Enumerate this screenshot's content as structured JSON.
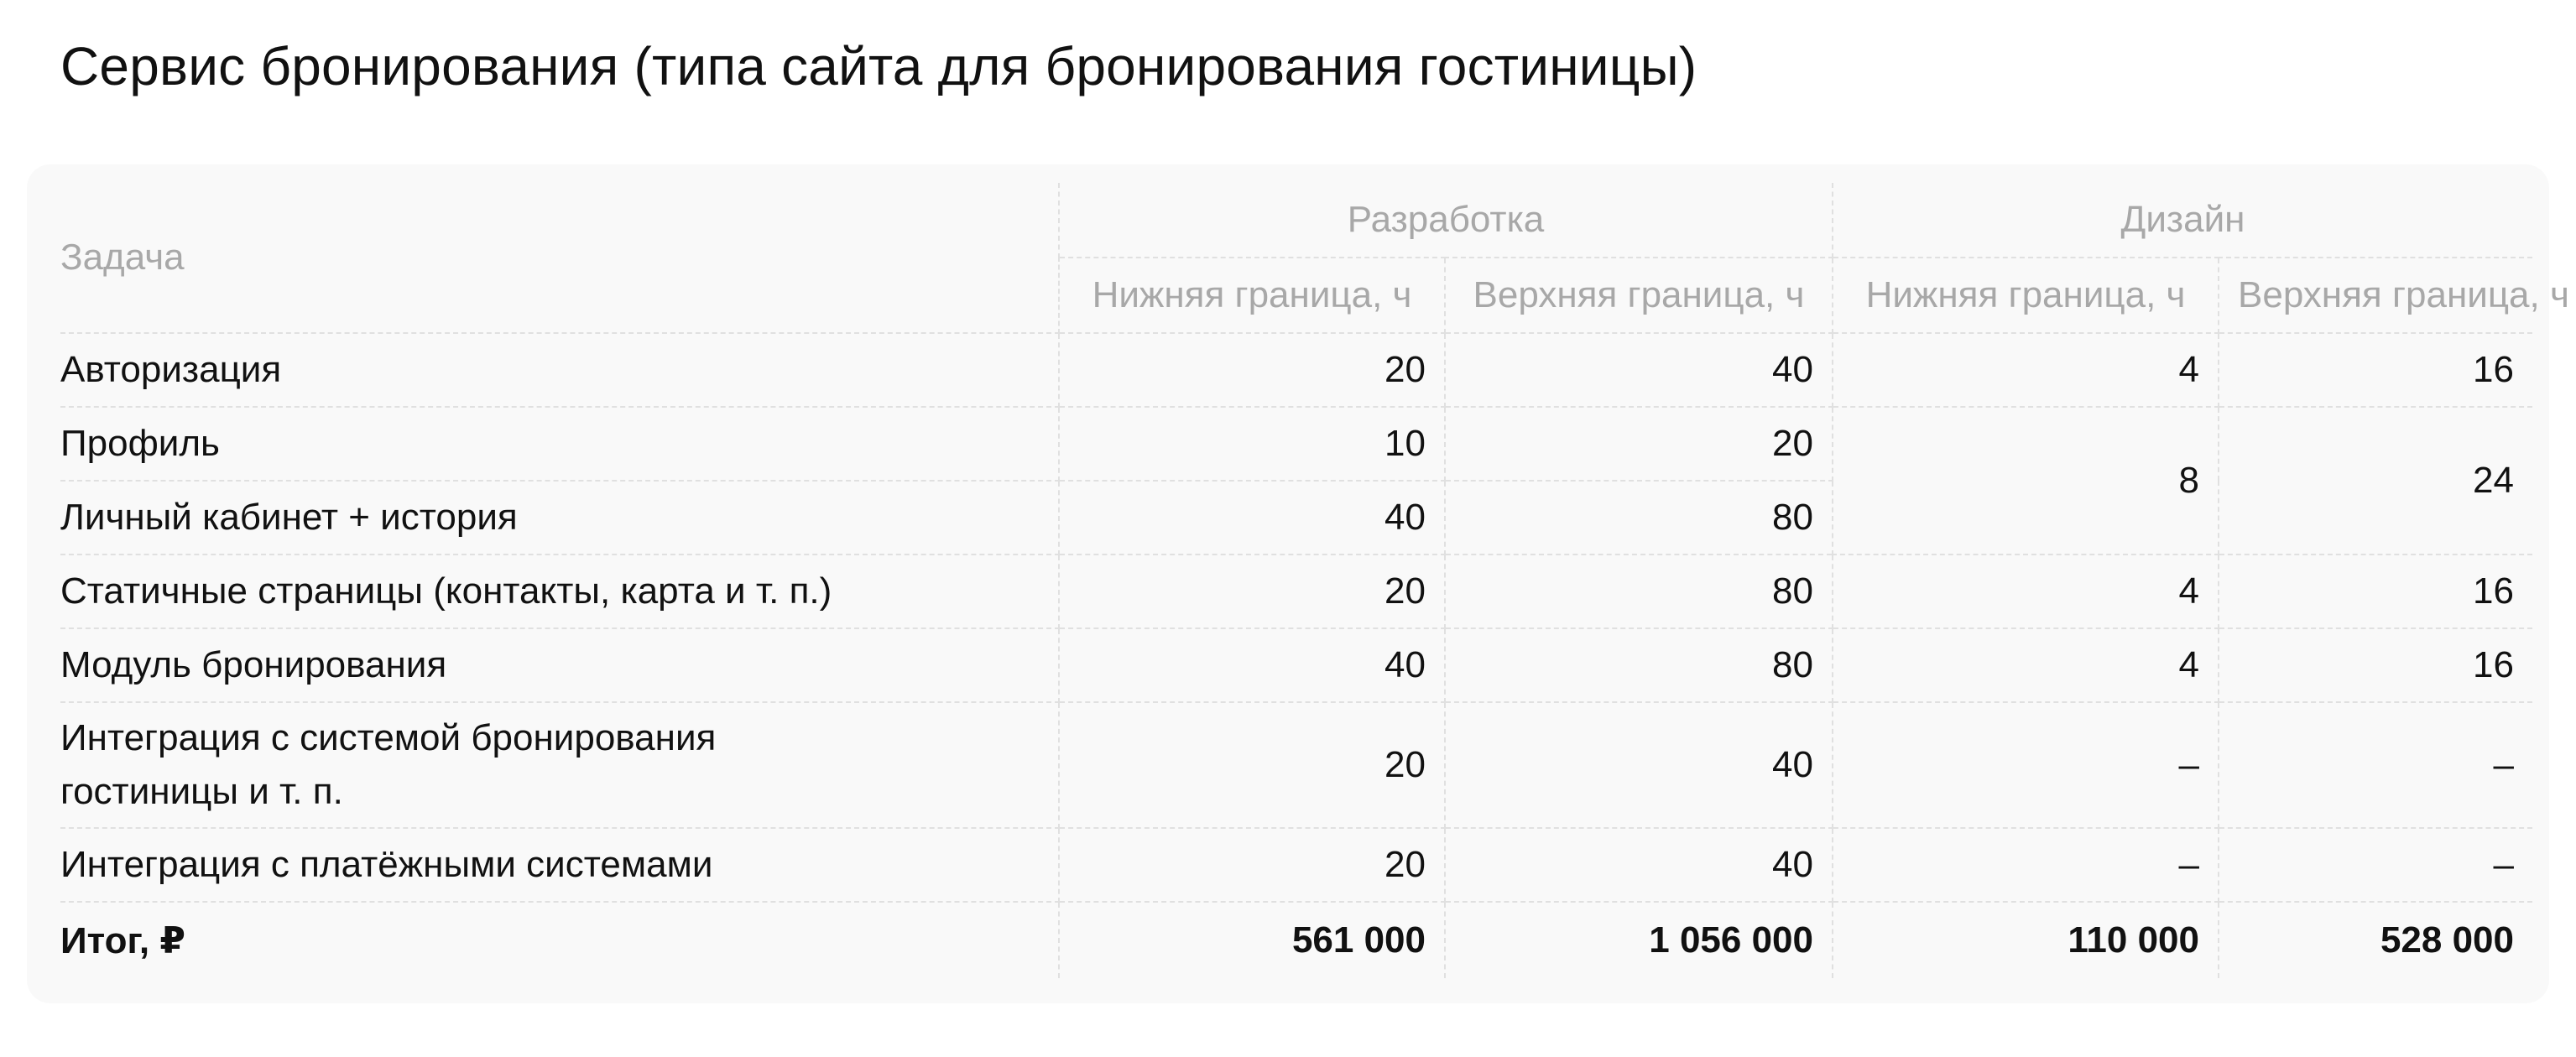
{
  "title": "Сервис бронирования (типа сайта для бронирования гостиницы)",
  "table": {
    "col_task": "Задача",
    "group_dev": "Разработка",
    "group_design": "Дизайн",
    "sub_low": "Нижняя граница, ч",
    "sub_high": "Верхняя граница, ч",
    "rows": [
      {
        "task": "Авторизация",
        "dev_low": "20",
        "dev_high": "40",
        "des_low": "4",
        "des_high": "16"
      },
      {
        "task": "Профиль",
        "dev_low": "10",
        "dev_high": "20",
        "des_low": "8",
        "des_high": "24"
      },
      {
        "task": "Личный кабинет + история",
        "dev_low": "40",
        "dev_high": "80"
      },
      {
        "task": "Статичные страницы (контакты, карта и т. п.)",
        "dev_low": "20",
        "dev_high": "80",
        "des_low": "4",
        "des_high": "16"
      },
      {
        "task": "Модуль бронирования",
        "dev_low": "40",
        "dev_high": "80",
        "des_low": "4",
        "des_high": "16"
      },
      {
        "task_line1": "Интеграция с системой бронирования",
        "task_line2": "гостиницы и т. п.",
        "dev_low": "20",
        "dev_high": "40",
        "des_low": "–",
        "des_high": "–"
      },
      {
        "task": "Интеграция с платёжными системами",
        "dev_low": "20",
        "dev_high": "40",
        "des_low": "–",
        "des_high": "–"
      }
    ],
    "total": {
      "label": "Итог, ₽",
      "dev_low": "561 000",
      "dev_high": "1 056 000",
      "des_low": "110 000",
      "des_high": "528 000"
    }
  }
}
